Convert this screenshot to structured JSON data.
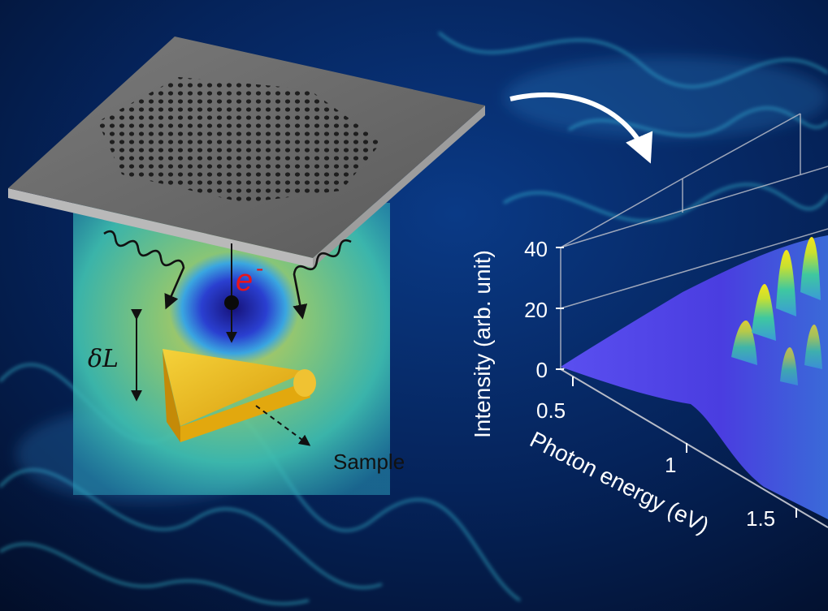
{
  "schematic": {
    "electron_label": "e",
    "electron_superscript": "-",
    "distance_label": "δL",
    "sample_label": "Sample"
  },
  "plot": {
    "ylabel": "Intensity (arb. unit)",
    "xlabel": "Photon energy (eV)",
    "y_ticks": [
      "40",
      "20",
      "0"
    ],
    "x_ticks": [
      "0.5",
      "1",
      "1.5"
    ]
  },
  "colors": {
    "background": "#041a45",
    "glow": "#3fd6e8",
    "electron_label": "#e8141b",
    "sample_gold": "#e9b512",
    "peak_yellow": "#f2e021",
    "surface_blue": "#4a3de0"
  }
}
